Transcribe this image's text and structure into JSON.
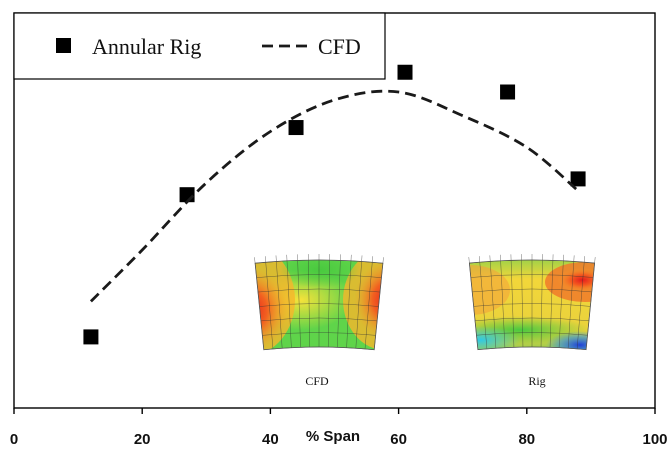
{
  "chart_data": {
    "type": "scatter",
    "xlabel": "% Span",
    "ylabel": "",
    "xlim": [
      0,
      100
    ],
    "xticks": [
      0,
      20,
      40,
      60,
      80,
      100
    ],
    "ylim": [
      0,
      1
    ],
    "yticks_labeled": false,
    "grid": false,
    "legend_position": "top-left",
    "series": [
      {
        "name": "Annular Rig",
        "style": "marker-square",
        "color": "#000000",
        "x": [
          12,
          27,
          44,
          61,
          77,
          88
        ],
        "y": [
          0.18,
          0.54,
          0.71,
          0.85,
          0.8,
          0.58
        ]
      },
      {
        "name": "CFD",
        "style": "dashed-line",
        "color": "#1a1a1a",
        "x": [
          12,
          20,
          30,
          40,
          50,
          60,
          70,
          80,
          88
        ],
        "y": [
          0.27,
          0.4,
          0.57,
          0.7,
          0.78,
          0.8,
          0.74,
          0.66,
          0.55
        ]
      }
    ],
    "insets": [
      {
        "caption": "CFD"
      },
      {
        "caption": "Rig"
      }
    ]
  }
}
